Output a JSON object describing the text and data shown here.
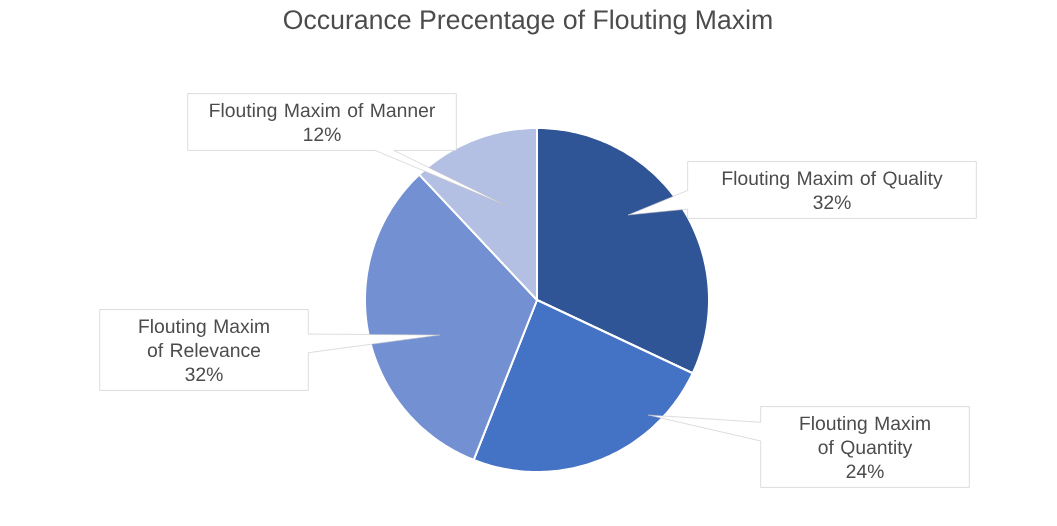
{
  "chart_data": {
    "type": "pie",
    "title": "Occurance Precentage of Flouting Maxim",
    "categories": [
      "Flouting Maxim of Quality",
      "Flouting Maxim of Quantity",
      "Flouting Maxim of Relevance",
      "Flouting Maxim of Manner"
    ],
    "values": [
      32,
      24,
      32,
      12
    ],
    "value_labels": [
      "32%",
      "24%",
      "32%",
      "12%"
    ],
    "colors": [
      "#2f5597",
      "#4472c4",
      "#7391d2",
      "#b4c0e3"
    ]
  }
}
